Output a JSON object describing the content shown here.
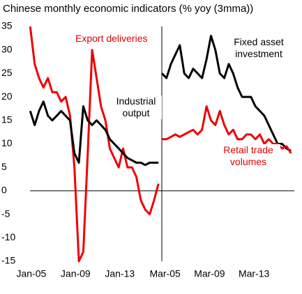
{
  "title": "Chinese monthly economic indicators (% yoy (3mma))",
  "chart_data": [
    {
      "type": "line",
      "x": [
        2004.9,
        2005.3,
        2005.7,
        2006.1,
        2006.5,
        2006.9,
        2007.3,
        2007.7,
        2008.1,
        2008.5,
        2008.9,
        2009.3,
        2009.7,
        2010.1,
        2010.5,
        2010.9,
        2011.3,
        2011.7,
        2012.1,
        2012.5,
        2012.9,
        2013.3,
        2013.7,
        2014.1,
        2014.5,
        2014.9,
        2015.3,
        2015.7,
        2016.1,
        2016.5
      ],
      "xlim": [
        2004.88,
        2016.8
      ],
      "xticks": [
        {
          "value": 2005,
          "label": "Jan-05"
        },
        {
          "value": 2009,
          "label": "Jan-09"
        },
        {
          "value": 2013,
          "label": "Jan-13"
        }
      ],
      "ylim": [
        -15,
        35
      ],
      "yticks": [
        35,
        30,
        25,
        20,
        15,
        10,
        5,
        0,
        -5,
        -10,
        -15
      ],
      "series": [
        {
          "name": "Export deliveries",
          "color": "#ee0000",
          "values": [
            35,
            27,
            24,
            22,
            24,
            21,
            21,
            19,
            20,
            16,
            5,
            -15,
            -13,
            8,
            30,
            24,
            18,
            15,
            9,
            7,
            5,
            9,
            5,
            5,
            3,
            -2,
            -4,
            -5,
            -2,
            1.5
          ]
        },
        {
          "name": "Industrial output",
          "color": "#000000",
          "values": [
            17,
            14,
            17,
            19,
            16,
            15,
            16,
            17,
            16,
            15,
            8,
            6,
            18,
            15,
            14,
            15,
            14,
            13,
            11,
            10,
            9,
            8,
            7,
            6.5,
            6,
            6,
            5.5,
            6,
            6,
            6
          ]
        }
      ]
    },
    {
      "type": "line",
      "x": [
        2004.9,
        2005.3,
        2005.7,
        2006.1,
        2006.5,
        2006.9,
        2007.3,
        2007.7,
        2008.1,
        2008.5,
        2008.9,
        2009.3,
        2009.7,
        2010.1,
        2010.5,
        2010.9,
        2011.3,
        2011.7,
        2012.1,
        2012.5,
        2012.9,
        2013.3,
        2013.7,
        2014.1,
        2014.5,
        2014.9,
        2015.3,
        2015.7,
        2016.1,
        2016.5
      ],
      "xlim": [
        2004.88,
        2016.8
      ],
      "xticks": [
        {
          "value": 2005.17,
          "label": "Mar-05"
        },
        {
          "value": 2009.17,
          "label": "Mar-09"
        },
        {
          "value": 2013.17,
          "label": "Mar-13"
        }
      ],
      "ylim": [
        -15,
        35
      ],
      "series": [
        {
          "name": "Fixed asset investment",
          "color": "#000000",
          "values": [
            25,
            24,
            27,
            29,
            31,
            25,
            24,
            26,
            25,
            24,
            28,
            33,
            30,
            25,
            24,
            27,
            25,
            22,
            20,
            20,
            20,
            18,
            17,
            16,
            14,
            12,
            10,
            10,
            9,
            8.5
          ]
        },
        {
          "name": "Retail trade volumes",
          "color": "#ee0000",
          "values": [
            11,
            11,
            11.5,
            12,
            11.5,
            12,
            12.5,
            13,
            12,
            13,
            18,
            15,
            14,
            17,
            14,
            12,
            13,
            11,
            11,
            12,
            12,
            11,
            12,
            10,
            11,
            10,
            10,
            9,
            9.5,
            8
          ]
        }
      ]
    }
  ]
}
